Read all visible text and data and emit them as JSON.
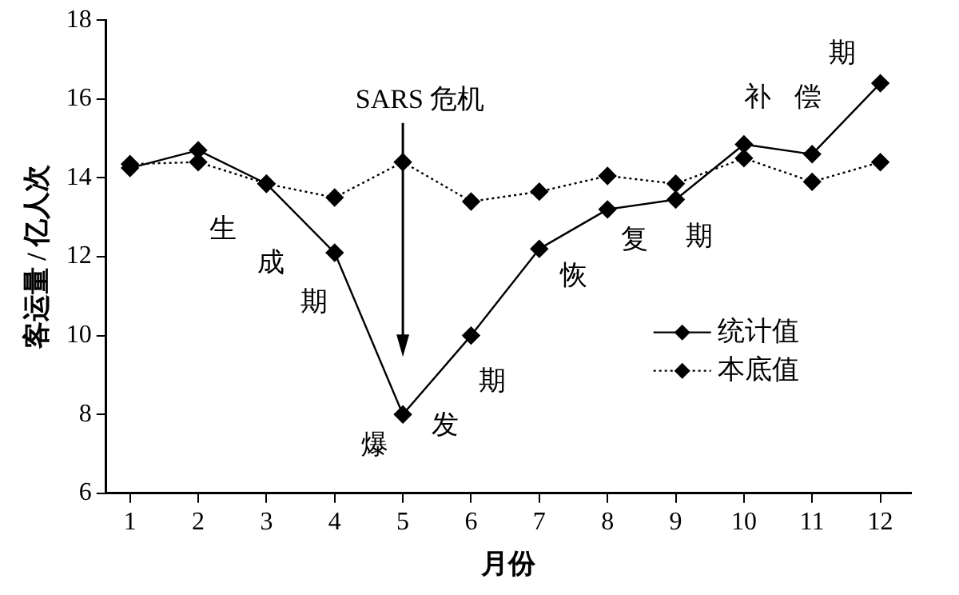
{
  "chart_data": {
    "type": "line",
    "xlabel": "月份",
    "ylabel": "客运量 / 亿人次",
    "x": [
      1,
      2,
      3,
      4,
      5,
      6,
      7,
      8,
      9,
      10,
      11,
      12
    ],
    "xlim": [
      0.65,
      12.45
    ],
    "xticks": [
      1,
      2,
      3,
      4,
      5,
      6,
      7,
      8,
      9,
      10,
      11,
      12
    ],
    "ylim": [
      6,
      18
    ],
    "yticks": [
      6,
      8,
      10,
      12,
      14,
      16,
      18
    ],
    "series": [
      {
        "name": "统计值",
        "color": "#000000",
        "line_style": "solid",
        "values": [
          14.25,
          14.7,
          13.85,
          12.1,
          8.0,
          10.0,
          12.2,
          13.2,
          13.45,
          14.85,
          14.6,
          16.4
        ]
      },
      {
        "name": "本底值",
        "color": "#000000",
        "line_style": "dotted",
        "values": [
          14.35,
          14.4,
          13.85,
          13.5,
          14.4,
          13.4,
          13.65,
          14.05,
          13.85,
          14.5,
          13.9,
          14.4
        ]
      }
    ],
    "marker": "diamond",
    "legend": "right",
    "grid": false,
    "annotations": [
      "SARS 危机",
      "生",
      "成",
      "期",
      "爆",
      "发",
      "期",
      "恢",
      "复",
      "期",
      "补",
      "偿",
      "期"
    ]
  }
}
